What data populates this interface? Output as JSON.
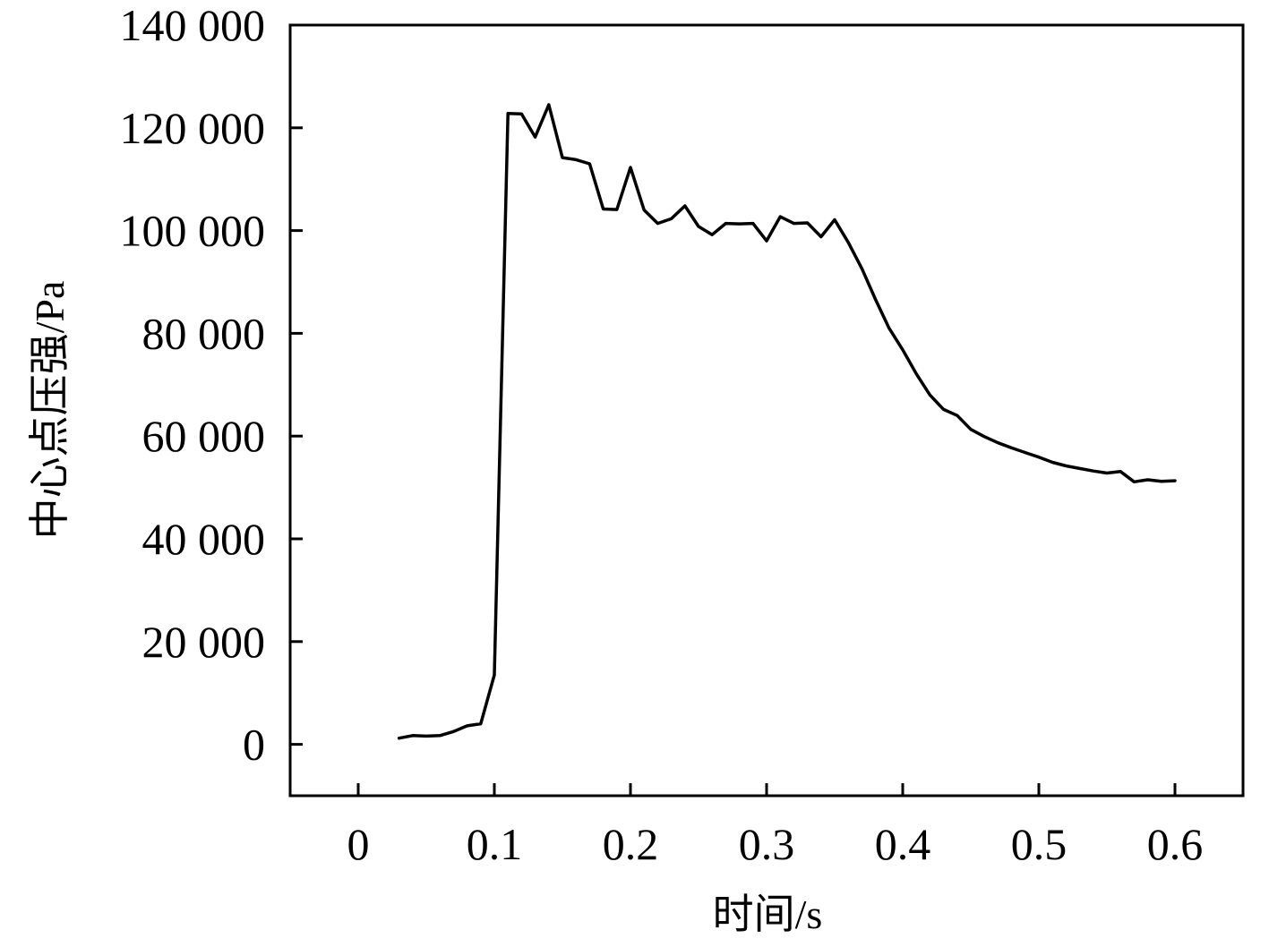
{
  "chart_data": {
    "type": "line",
    "title": "",
    "xlabel": "时间/s",
    "ylabel": "中心点压强/Pa",
    "xlim": [
      -0.05,
      0.65
    ],
    "ylim": [
      -10000,
      140000
    ],
    "x_ticks": [
      0,
      0.1,
      0.2,
      0.3,
      0.4,
      0.5,
      0.6
    ],
    "x_tick_labels": [
      "0",
      "0.1",
      "0.2",
      "0.3",
      "0.4",
      "0.5",
      "0.6"
    ],
    "y_ticks": [
      0,
      20000,
      40000,
      60000,
      80000,
      100000,
      120000,
      140000
    ],
    "y_tick_labels": [
      "0",
      "20 000",
      "40 000",
      "60 000",
      "80 000",
      "100 000",
      "120 000",
      "140 000"
    ],
    "grid": false,
    "legend": "none",
    "series": [
      {
        "color": "#000000",
        "x": [
          0.03,
          0.04,
          0.05,
          0.06,
          0.07,
          0.08,
          0.09,
          0.1,
          0.11,
          0.12,
          0.13,
          0.14,
          0.15,
          0.16,
          0.17,
          0.18,
          0.19,
          0.2,
          0.21,
          0.22,
          0.23,
          0.24,
          0.25,
          0.26,
          0.27,
          0.28,
          0.29,
          0.3,
          0.31,
          0.32,
          0.33,
          0.34,
          0.35,
          0.36,
          0.37,
          0.38,
          0.39,
          0.4,
          0.41,
          0.42,
          0.43,
          0.44,
          0.45,
          0.46,
          0.47,
          0.48,
          0.49,
          0.5,
          0.51,
          0.52,
          0.53,
          0.54,
          0.55,
          0.56,
          0.57,
          0.58,
          0.59,
          0.6
        ],
        "values": [
          1200,
          1700,
          1600,
          1700,
          2500,
          3600,
          4000,
          13500,
          122800,
          122700,
          118200,
          124500,
          114200,
          113800,
          113000,
          104200,
          104100,
          112300,
          104000,
          101400,
          102300,
          104800,
          100800,
          99200,
          101400,
          101300,
          101400,
          98000,
          102700,
          101400,
          101500,
          98800,
          102100,
          97700,
          92600,
          86600,
          81000,
          76800,
          72100,
          68000,
          65200,
          64000,
          61300,
          59900,
          58700,
          57700,
          56800,
          55900,
          54900,
          54200,
          53700,
          53200,
          52800,
          53100,
          51100,
          51500,
          51200,
          51300
        ]
      }
    ]
  }
}
